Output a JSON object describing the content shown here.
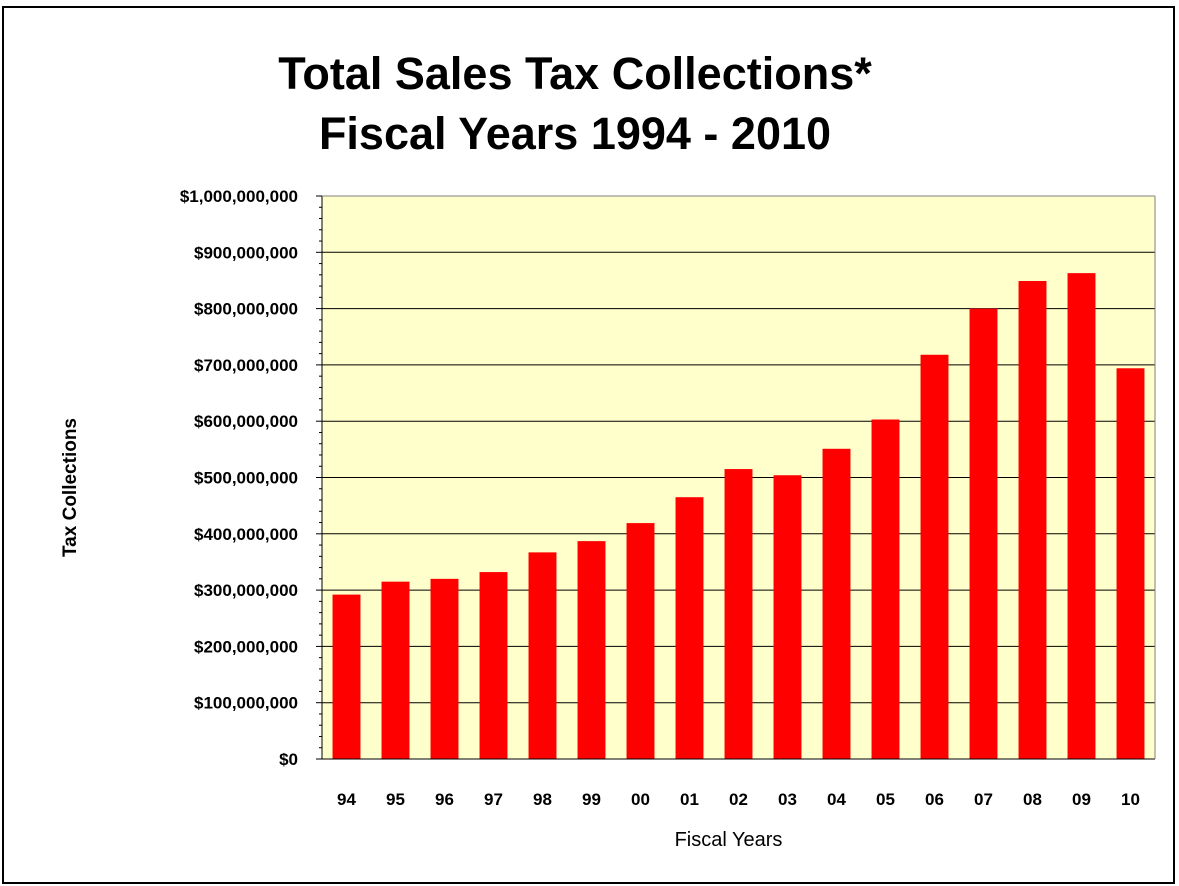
{
  "chart_data": {
    "type": "bar",
    "title": "Total Sales Tax Collections*",
    "subtitle": "Fiscal Years 1994 - 2010",
    "xlabel": "Fiscal Years",
    "ylabel": "Tax Collections",
    "categories": [
      "94",
      "95",
      "96",
      "97",
      "98",
      "99",
      "00",
      "01",
      "02",
      "03",
      "04",
      "05",
      "06",
      "07",
      "08",
      "09",
      "10"
    ],
    "values": [
      292000000,
      315000000,
      320000000,
      332000000,
      367000000,
      387000000,
      419000000,
      465000000,
      515000000,
      504000000,
      551000000,
      603000000,
      718000000,
      800000000,
      849000000,
      863000000,
      694000000
    ],
    "ylim": [
      0,
      1000000000
    ],
    "yticks": [
      "$0",
      "$100,000,000",
      "$200,000,000",
      "$300,000,000",
      "$400,000,000",
      "$500,000,000",
      "$600,000,000",
      "$700,000,000",
      "$800,000,000",
      "$900,000,000",
      "$1,000,000,000"
    ],
    "grid": true,
    "colors": {
      "bar": "#ff0000",
      "plot_background": "#ffffcc",
      "gridline": "#000000"
    }
  }
}
